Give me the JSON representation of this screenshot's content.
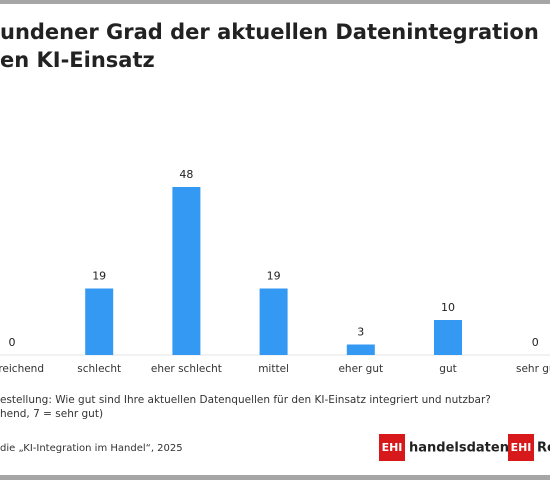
{
  "chart_data": {
    "type": "bar",
    "title": [
      "undener Grad der aktuellen Datenintegration",
      "en KI-Einsatz"
    ],
    "categories": [
      "ureichend",
      "schlecht",
      "eher schlecht",
      "mittel",
      "eher gut",
      "gut",
      "sehr gu"
    ],
    "values": [
      0,
      19,
      48,
      19,
      3,
      10,
      0
    ],
    "color": "#3399f3",
    "footnote": [
      "estellung: Wie gut sind Ihre aktuellen Datenquellen für den KI-Einsatz integriert und nutzbar?",
      "hend, 7 = sehr gut)"
    ],
    "source": "die „KI-Integration im Handel“, 2025",
    "logos": [
      {
        "badge": "EHI",
        "text": "handelsdaten.de"
      },
      {
        "badge": "EHI",
        "text": "Re"
      }
    ]
  }
}
